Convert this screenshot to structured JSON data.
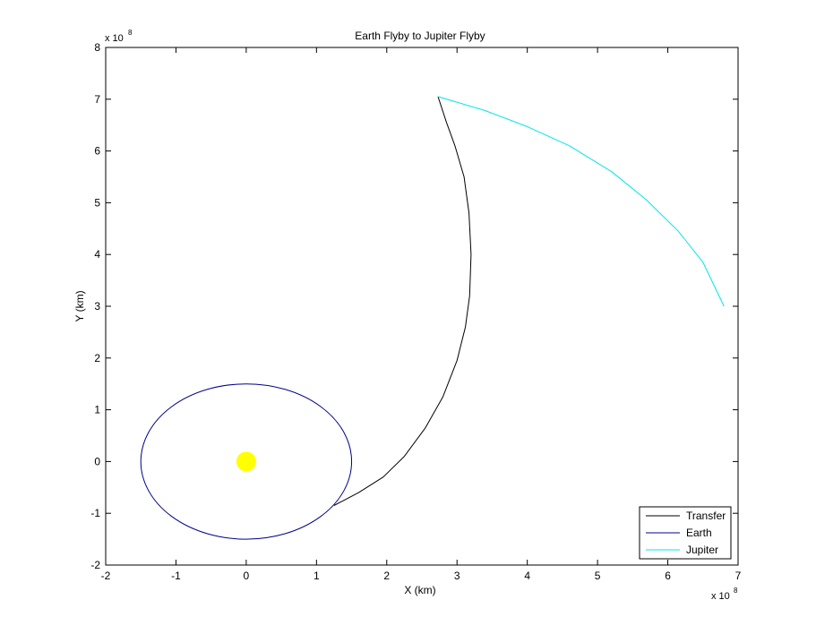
{
  "chart_data": {
    "type": "line",
    "title": "Earth Flyby to Jupiter Flyby",
    "xlabel": "X (km)",
    "ylabel": "Y (km)",
    "xlim": [
      -2,
      7
    ],
    "ylim": [
      -2,
      8
    ],
    "x_ticks": [
      "-2",
      "-1",
      "0",
      "1",
      "2",
      "3",
      "4",
      "5",
      "6",
      "7"
    ],
    "y_ticks": [
      "-2",
      "-1",
      "0",
      "1",
      "2",
      "3",
      "4",
      "5",
      "6",
      "7",
      "8"
    ],
    "x_multiplier": {
      "base": "x 10",
      "power": "8"
    },
    "y_multiplier": {
      "base": "x 10",
      "power": "8"
    },
    "grid": false,
    "legend_position": "bottom-right",
    "series": [
      {
        "name": "Transfer",
        "color": "#000000",
        "x": [
          1.25,
          1.6,
          1.95,
          2.25,
          2.55,
          2.8,
          3.0,
          3.12,
          3.18,
          3.2,
          3.17,
          3.1,
          2.97,
          2.85,
          2.73
        ],
        "y": [
          -0.85,
          -0.6,
          -0.3,
          0.1,
          0.65,
          1.25,
          1.95,
          2.6,
          3.2,
          4.0,
          4.8,
          5.5,
          6.1,
          6.55,
          7.05
        ]
      },
      {
        "name": "Earth",
        "color": "#00008b",
        "orbit": {
          "cx": 0,
          "cy": 0,
          "rx": 1.5,
          "ry": 1.5
        }
      },
      {
        "name": "Jupiter",
        "color": "#00e5ee",
        "x": [
          2.73,
          3.4,
          4.0,
          4.6,
          5.2,
          5.7,
          6.15,
          6.5,
          6.8
        ],
        "y": [
          7.05,
          6.78,
          6.47,
          6.1,
          5.6,
          5.05,
          4.45,
          3.85,
          3.0
        ]
      }
    ],
    "sun": {
      "x": 0,
      "y": 0,
      "color": "#ffff00"
    }
  }
}
